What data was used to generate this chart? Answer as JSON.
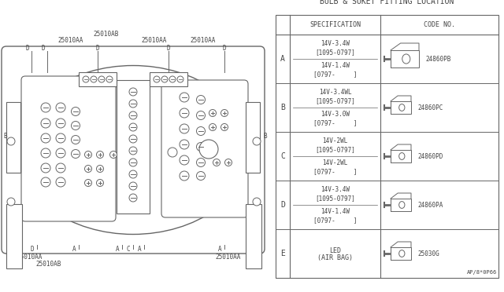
{
  "bg_color": "#ffffff",
  "line_color": "#666666",
  "text_color": "#444444",
  "title": "BULB & SOKET FITTING LOCATION",
  "header_spec": "SPECIFICATION",
  "header_code": "CODE NO.",
  "rows": [
    {
      "label": "A",
      "spec1": "14V-3.4W",
      "spec1b": "[1095-0797]",
      "spec2": "14V-1.4W",
      "spec2b": "[0797-     ]",
      "code": "24860PB",
      "connector_type": "large"
    },
    {
      "label": "B",
      "spec1": "14V-3.4WL",
      "spec1b": "[1095-0797]",
      "spec2": "14V-3.0W",
      "spec2b": "[0797-     ]",
      "code": "24860PC",
      "connector_type": "small"
    },
    {
      "label": "C",
      "spec1": "14V-2WL",
      "spec1b": "[1095-0797]",
      "spec2": "14V-2WL",
      "spec2b": "[0797-     ]",
      "code": "24860PD",
      "connector_type": "small"
    },
    {
      "label": "D",
      "spec1": "14V-3.4W",
      "spec1b": "[1095-0797]",
      "spec2": "14V-1.4W",
      "spec2b": "[0797-     ]",
      "code": "24860PA",
      "connector_type": "small"
    },
    {
      "label": "E",
      "spec1": "LED",
      "spec1b": "(AIR BAG)",
      "spec2": "",
      "spec2b": "",
      "code": "25030G",
      "connector_type": "small"
    }
  ],
  "footnote": "AP/8*0P66"
}
